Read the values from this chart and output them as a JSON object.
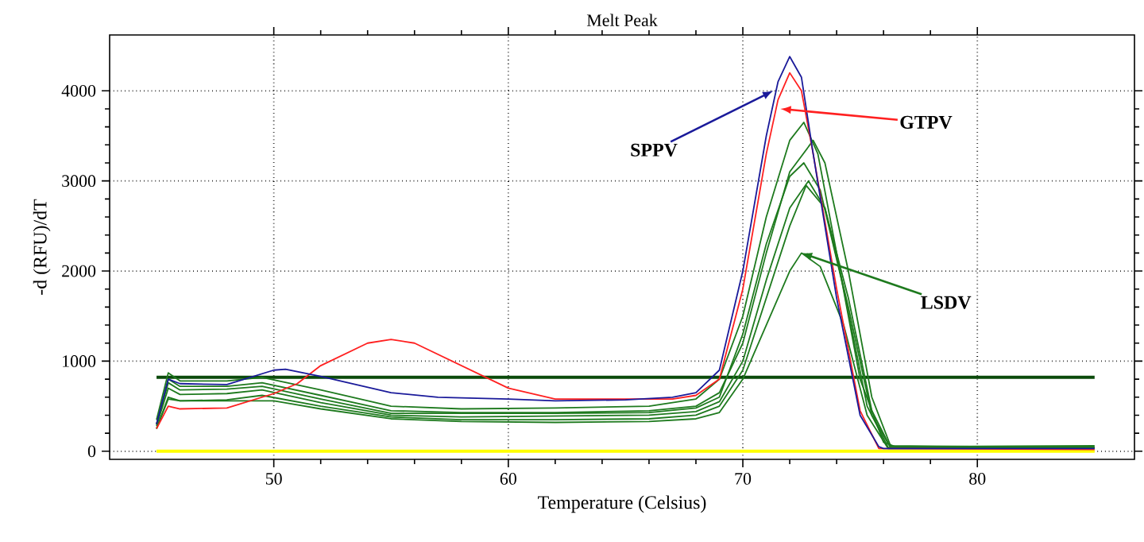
{
  "chart_data": {
    "type": "line",
    "title": "Melt Peak",
    "xlabel": "Temperature (Celsius)",
    "ylabel": "-d (RFU)/dT",
    "xlim": [
      43,
      86.7
    ],
    "ylim": [
      -90,
      4620
    ],
    "xticks": [
      50,
      60,
      70,
      80
    ],
    "yticks": [
      0,
      1000,
      2000,
      3000,
      4000
    ],
    "grid": true,
    "marker": "none",
    "line_style": "solid",
    "ref_lines": [
      {
        "axis": "y",
        "value": 820,
        "color": "#0b4a0b"
      }
    ],
    "annotations": [
      {
        "text": "SPPV",
        "x": 71.3,
        "y": 4000
      },
      {
        "text": "GTPV",
        "x": 71.6,
        "y": 3800
      },
      {
        "text": "LSDV",
        "x": 72.5,
        "y": 2200
      }
    ],
    "series": [
      {
        "color": "#ffff00",
        "x": [
          45,
          85
        ],
        "values": [
          0,
          0
        ]
      },
      {
        "color": "#1e7a1e",
        "x": [
          45,
          45.5,
          46,
          48,
          49.5,
          52,
          55,
          58,
          62,
          66,
          68,
          69,
          70,
          71,
          72,
          72.6,
          73.2,
          74,
          75,
          76,
          76.5,
          85
        ],
        "values": [
          350,
          870,
          780,
          780,
          820,
          680,
          500,
          470,
          480,
          500,
          580,
          800,
          1500,
          2600,
          3450,
          3650,
          3300,
          2200,
          800,
          100,
          50,
          60
        ]
      },
      {
        "color": "#1e7a1e",
        "x": [
          45,
          45.5,
          46,
          48,
          49.5,
          52,
          55,
          58,
          62,
          66,
          68,
          69,
          70,
          71,
          72,
          73,
          73.5,
          74.5,
          75.5,
          76.3,
          85
        ],
        "values": [
          300,
          800,
          720,
          720,
          760,
          620,
          450,
          430,
          430,
          450,
          500,
          650,
          1200,
          2200,
          3100,
          3450,
          3200,
          2000,
          600,
          60,
          40
        ]
      },
      {
        "color": "#1e7a1e",
        "x": [
          45,
          45.5,
          46,
          48,
          49.5,
          52,
          55,
          58,
          62,
          66,
          68,
          69,
          70,
          71,
          72,
          72.6,
          73.3,
          74.3,
          75.3,
          76.2,
          85
        ],
        "values": [
          300,
          760,
          680,
          690,
          720,
          580,
          420,
          420,
          420,
          430,
          480,
          600,
          1300,
          2300,
          3050,
          3200,
          2900,
          1800,
          500,
          40,
          40
        ]
      },
      {
        "color": "#1e7a1e",
        "x": [
          45,
          45.5,
          46,
          48,
          49.5,
          52,
          55,
          58,
          62,
          66,
          68,
          69,
          70,
          71,
          72,
          72.8,
          73.5,
          74.5,
          75.5,
          76.3,
          85
        ],
        "values": [
          280,
          700,
          630,
          640,
          680,
          540,
          400,
          380,
          390,
          400,
          440,
          550,
          1000,
          1900,
          2700,
          3000,
          2700,
          1600,
          400,
          40,
          40
        ]
      },
      {
        "color": "#1e7a1e",
        "x": [
          45,
          45.5,
          46,
          48,
          49.5,
          52,
          55,
          58,
          62,
          66,
          68,
          69,
          70,
          71,
          72,
          72.7,
          73.5,
          74.5,
          75.5,
          76.3,
          85
        ],
        "values": [
          250,
          600,
          560,
          570,
          620,
          500,
          380,
          350,
          350,
          360,
          400,
          500,
          900,
          1700,
          2500,
          2950,
          2700,
          1700,
          450,
          40,
          40
        ]
      },
      {
        "color": "#1e7a1e",
        "x": [
          45,
          45.5,
          46,
          48,
          50,
          52,
          55,
          58,
          62,
          66,
          68,
          69,
          70,
          71,
          72,
          72.5,
          73.3,
          74.3,
          75.3,
          76.2,
          85
        ],
        "values": [
          250,
          580,
          560,
          560,
          560,
          470,
          360,
          330,
          320,
          330,
          360,
          430,
          800,
          1400,
          2000,
          2200,
          2050,
          1400,
          400,
          30,
          30
        ]
      },
      {
        "color": "#ff2020",
        "x": [
          45,
          45.5,
          46,
          48,
          50,
          51,
          52,
          54,
          55,
          56,
          58,
          60,
          62,
          65,
          67,
          68,
          69,
          70,
          71,
          71.5,
          72,
          72.5,
          73,
          74,
          75,
          75.8,
          85
        ],
        "values": [
          250,
          500,
          470,
          480,
          640,
          750,
          950,
          1200,
          1240,
          1200,
          950,
          700,
          580,
          null,
          580,
          620,
          800,
          1800,
          3300,
          3900,
          4200,
          4000,
          3300,
          1800,
          450,
          30,
          20
        ]
      },
      {
        "color": "#1a1a9a",
        "x": [
          45,
          45.5,
          46,
          48,
          50,
          50.5,
          52,
          55,
          57,
          60,
          62,
          65,
          67,
          68,
          69,
          70,
          71,
          71.5,
          72,
          72.5,
          73,
          74,
          75,
          75.8,
          76,
          85
        ],
        "values": [
          300,
          800,
          750,
          740,
          900,
          910,
          830,
          650,
          600,
          580,
          560,
          570,
          600,
          650,
          900,
          2000,
          3500,
          4100,
          4380,
          4150,
          3300,
          1700,
          400,
          50,
          30,
          30
        ]
      }
    ]
  }
}
